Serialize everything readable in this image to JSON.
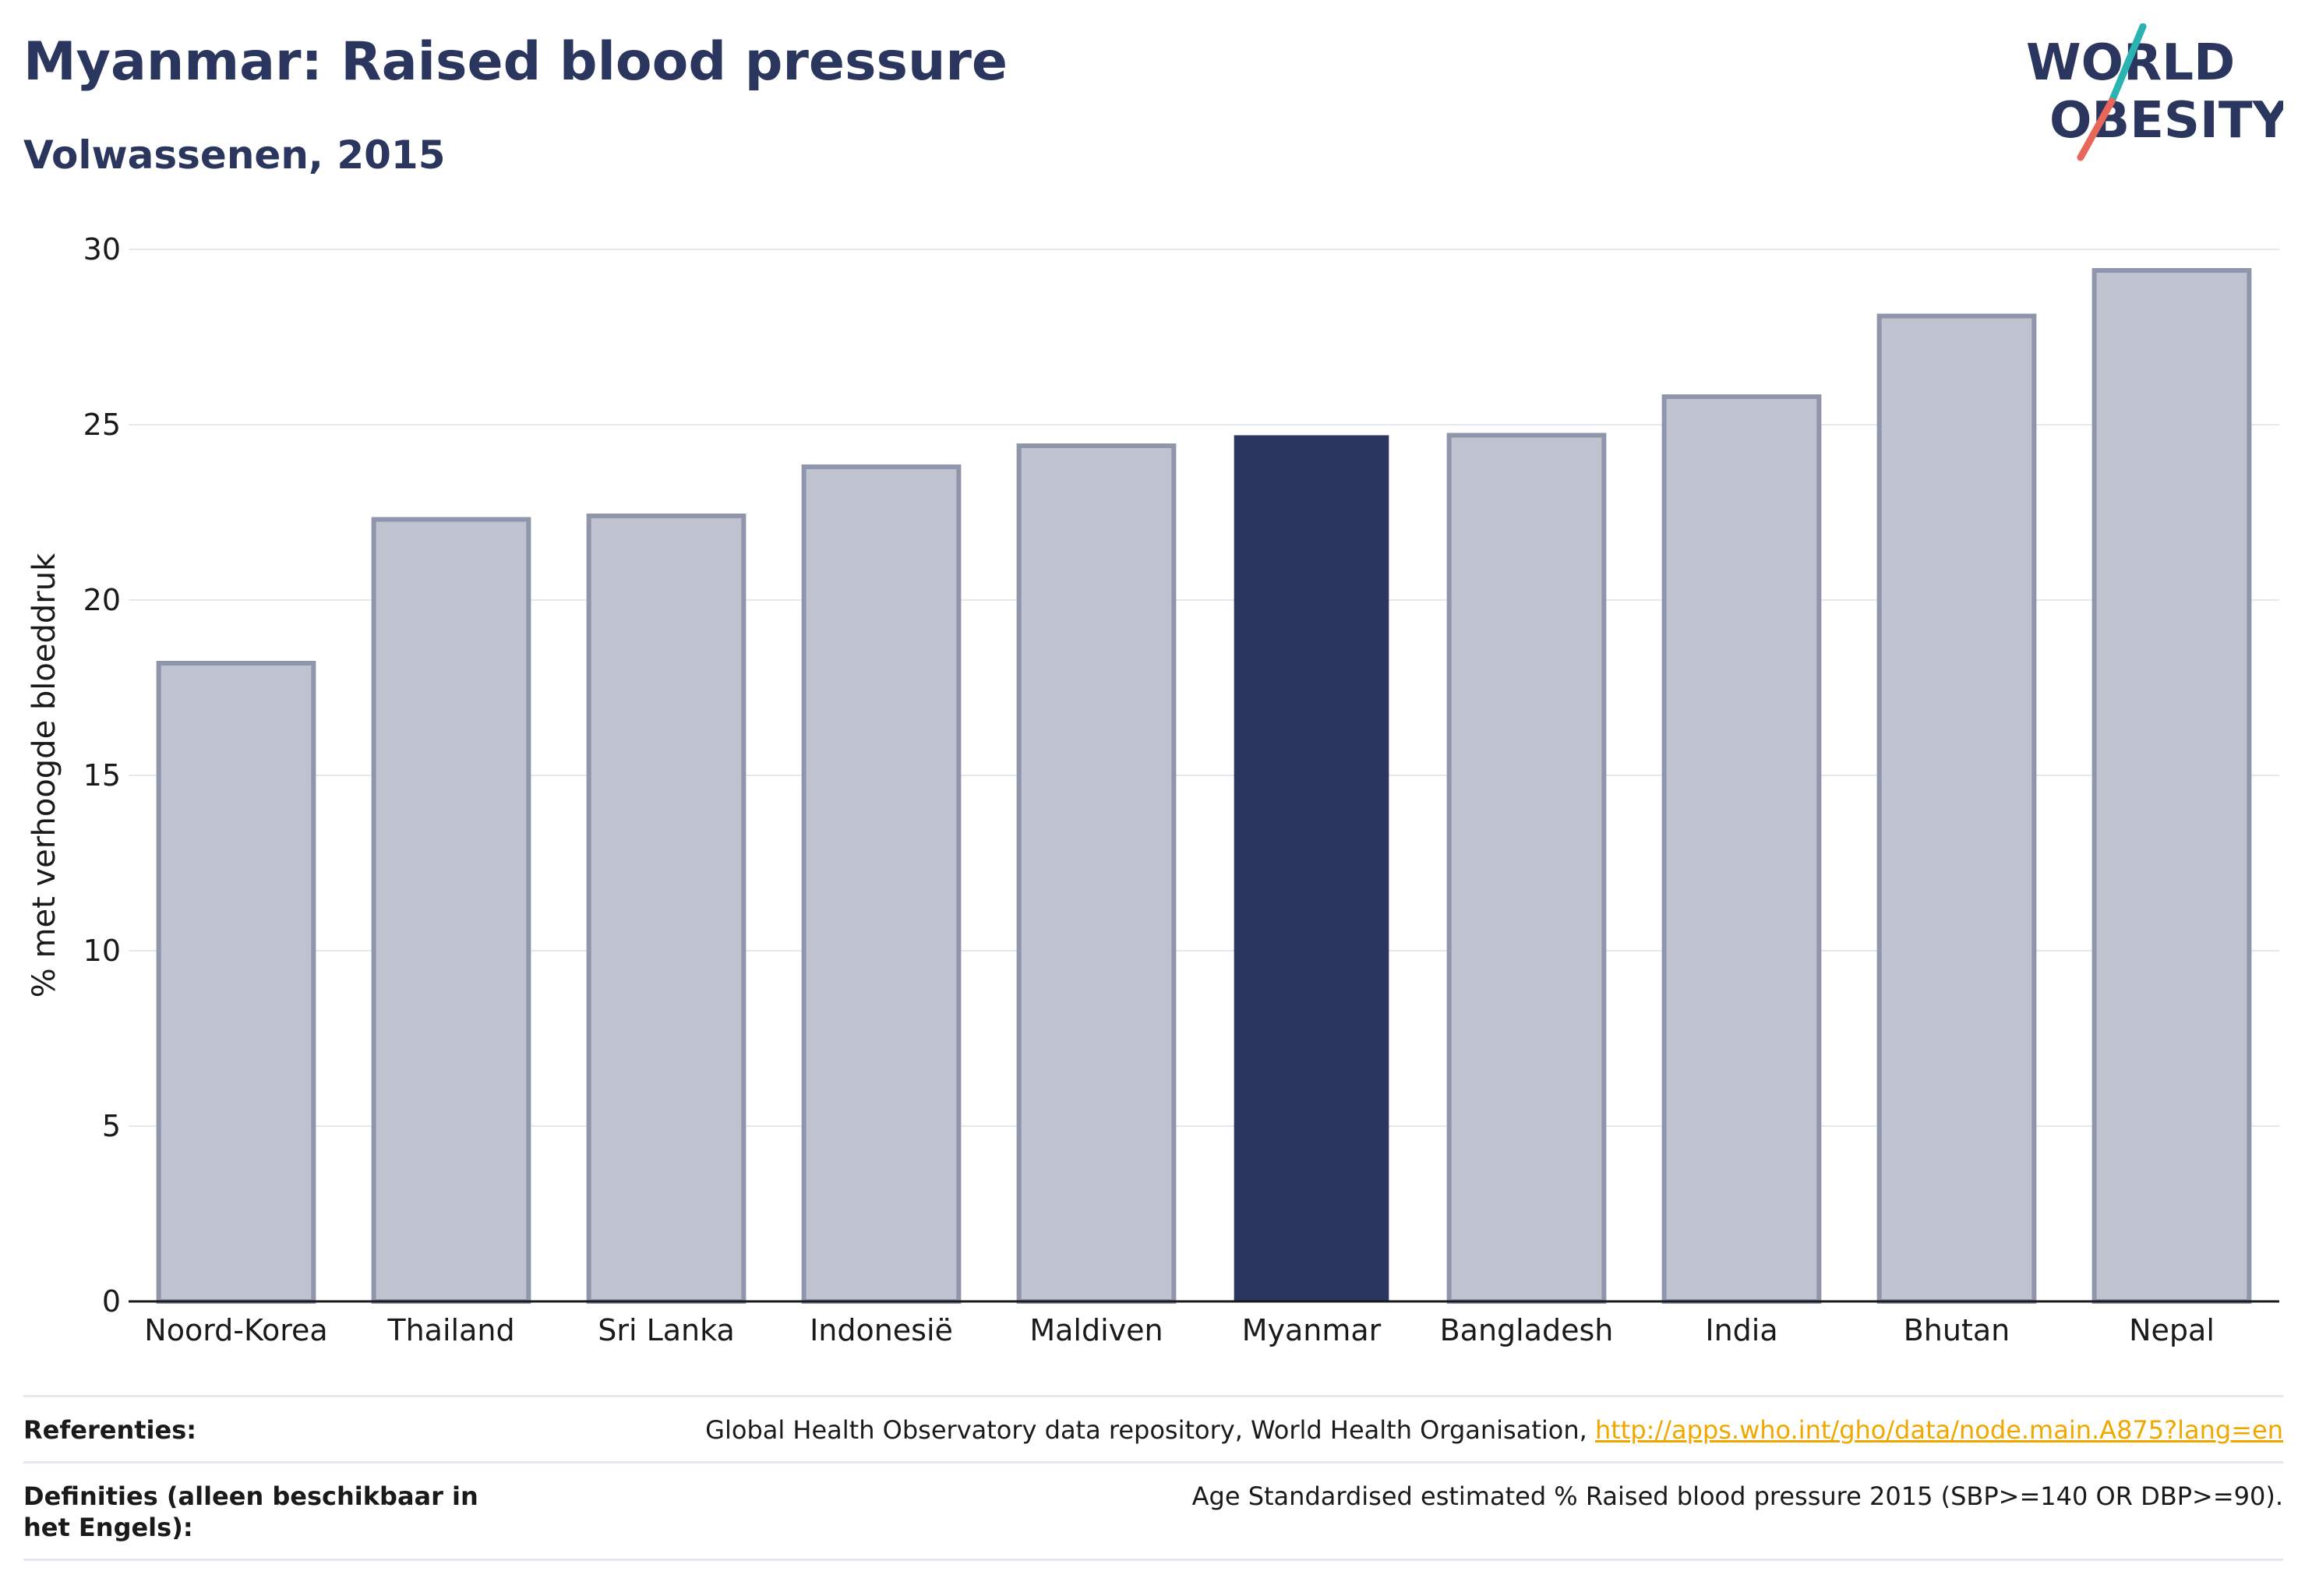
{
  "header": {
    "title": "Myanmar: Raised blood pressure",
    "subtitle": "Volwassenen, 2015"
  },
  "logo": {
    "line1": "WORLD",
    "line2": "OBESITY",
    "colors": {
      "text": "#2b365f",
      "slash_teal": "#2bb3b1",
      "slash_coral": "#e8675a"
    }
  },
  "chart_data": {
    "type": "bar",
    "categories": [
      "Noord-Korea",
      "Thailand",
      "Sri Lanka",
      "Indonesië",
      "Maldiven",
      "Myanmar",
      "Bangladesh",
      "India",
      "Bhutan",
      "Nepal"
    ],
    "values": [
      18.2,
      22.3,
      22.4,
      23.8,
      24.4,
      24.7,
      24.7,
      25.8,
      28.1,
      29.4
    ],
    "highlight": "Myanmar",
    "ylabel": "% met verhoogde bloeddruk",
    "xlabel": "",
    "ylim": [
      0,
      30
    ],
    "yticks": [
      0,
      5,
      10,
      15,
      20,
      25,
      30
    ],
    "grid": true,
    "colors": {
      "bar": "#bfc2cf",
      "bar_edge": "#8f95ab",
      "highlight": "#2b365f",
      "grid": "#e6e8ef",
      "axis": "#1a1a1a"
    }
  },
  "references": {
    "ref_label": "Referenties:",
    "ref_text": "Global Health Observatory data repository, World Health Organisation, ",
    "ref_link": "http://apps.who.int/gho/data/node.main.A875?lang=en",
    "def_label": "Definities (alleen beschikbaar in het Engels):",
    "def_text": "Age Standardised estimated % Raised blood pressure 2015 (SBP>=140 OR DBP>=90)."
  }
}
